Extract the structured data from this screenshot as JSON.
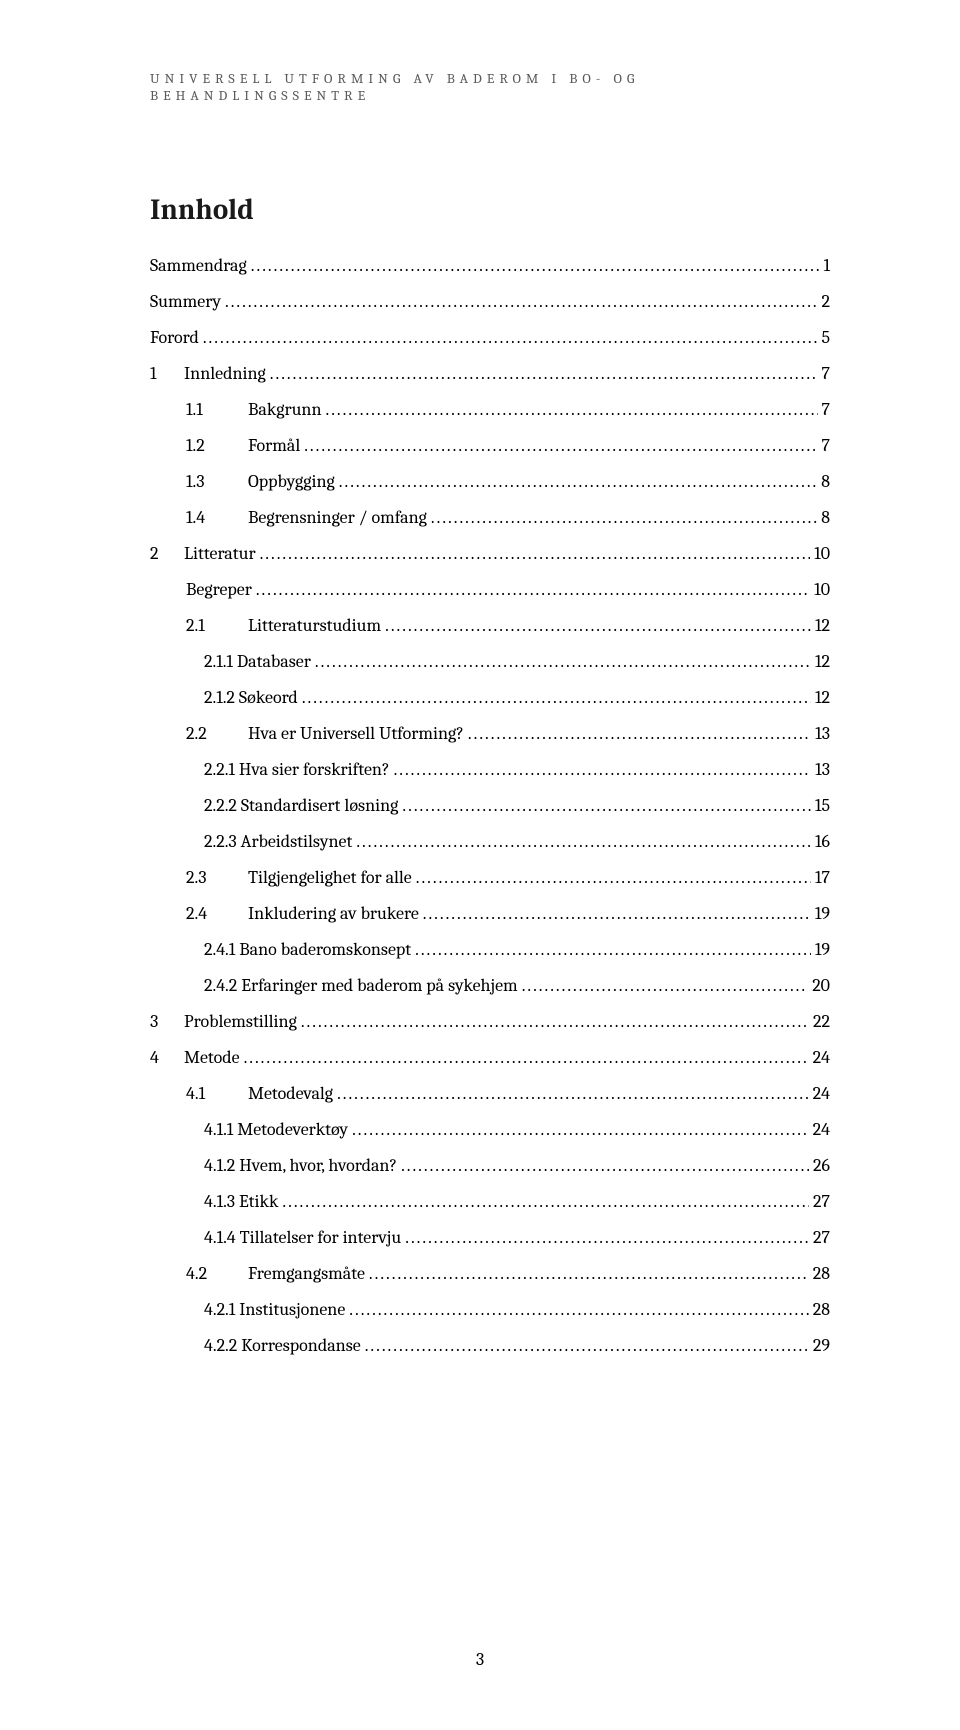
{
  "header": "UNIVERSELL UTFORMING AV BADEROM I BO- OG BEHANDLINGSSENTRE",
  "title": "Innhold",
  "page_number": "3",
  "toc": [
    {
      "indent": 0,
      "num": "",
      "label": "Sammendrag",
      "page": "1"
    },
    {
      "indent": 0,
      "num": "",
      "label": "Summery",
      "page": "2"
    },
    {
      "indent": 0,
      "num": "",
      "label": "Forord",
      "page": "5"
    },
    {
      "indent": 0,
      "num": "1",
      "label": "Innledning",
      "page": "7"
    },
    {
      "indent": 1,
      "num": "1.1",
      "label": "Bakgrunn",
      "page": "7"
    },
    {
      "indent": 1,
      "num": "1.2",
      "label": "Formål",
      "page": "7"
    },
    {
      "indent": 1,
      "num": "1.3",
      "label": "Oppbygging",
      "page": "8"
    },
    {
      "indent": 1,
      "num": "1.4",
      "label": "Begrensninger / omfang",
      "page": "8"
    },
    {
      "indent": 0,
      "num": "2",
      "label": "Litteratur",
      "page": "10"
    },
    {
      "indent": 1,
      "num": "",
      "label": "Begreper",
      "page": "10"
    },
    {
      "indent": 1,
      "num": "2.1",
      "label": "Litteraturstudium",
      "page": "12"
    },
    {
      "indent": 2,
      "num": "",
      "label": "2.1.1 Databaser",
      "page": "12"
    },
    {
      "indent": 2,
      "num": "",
      "label": "2.1.2 Søkeord",
      "page": "12"
    },
    {
      "indent": 1,
      "num": "2.2",
      "label": "Hva er Universell Utforming?",
      "page": "13"
    },
    {
      "indent": 2,
      "num": "",
      "label": "2.2.1 Hva sier forskriften?",
      "page": "13"
    },
    {
      "indent": 2,
      "num": "",
      "label": "2.2.2 Standardisert løsning",
      "page": "15"
    },
    {
      "indent": 2,
      "num": "",
      "label": "2.2.3 Arbeidstilsynet",
      "page": "16"
    },
    {
      "indent": 1,
      "num": "2.3",
      "label": "Tilgjengelighet for alle",
      "page": "17"
    },
    {
      "indent": 1,
      "num": "2.4",
      "label": "Inkludering av brukere",
      "page": "19"
    },
    {
      "indent": 2,
      "num": "",
      "label": "2.4.1 Bano baderomskonsept",
      "page": "19"
    },
    {
      "indent": 2,
      "num": "",
      "label": "2.4.2 Erfaringer med baderom på sykehjem",
      "page": "20"
    },
    {
      "indent": 0,
      "num": "3",
      "label": "Problemstilling",
      "page": "22"
    },
    {
      "indent": 0,
      "num": "4",
      "label": "Metode",
      "page": "24"
    },
    {
      "indent": 1,
      "num": "4.1",
      "label": "Metodevalg",
      "page": "24"
    },
    {
      "indent": 2,
      "num": "",
      "label": "4.1.1 Metodeverktøy",
      "page": "24"
    },
    {
      "indent": 2,
      "num": "",
      "label": "4.1.2 Hvem, hvor, hvordan?",
      "page": "26"
    },
    {
      "indent": 2,
      "num": "",
      "label": "4.1.3 Etikk",
      "page": "27"
    },
    {
      "indent": 2,
      "num": "",
      "label": "4.1.4 Tillatelser for intervju",
      "page": "27"
    },
    {
      "indent": 1,
      "num": "4.2",
      "label": "Fremgangsmåte",
      "page": "28"
    },
    {
      "indent": 2,
      "num": "",
      "label": "4.2.1 Institusjonene",
      "page": "28"
    },
    {
      "indent": 2,
      "num": "",
      "label": "4.2.2 Korrespondanse",
      "page": "29"
    }
  ]
}
